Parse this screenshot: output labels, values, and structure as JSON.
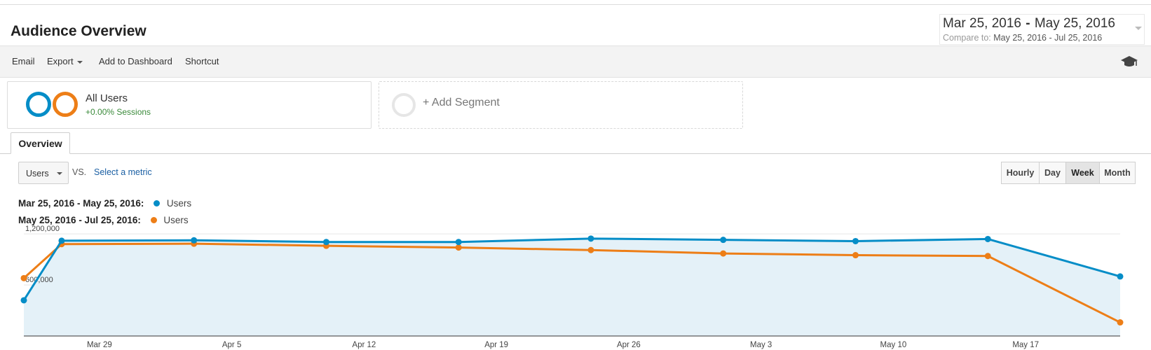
{
  "header": {
    "title": "Audience Overview",
    "date_range": {
      "start": "Mar 25, 2016",
      "separator": "-",
      "end": "May 25, 2016"
    },
    "compare_label": "Compare to:",
    "compare_range": "May 25, 2016 - Jul 25, 2016"
  },
  "toolbar": {
    "email": "Email",
    "export": "Export",
    "add_to_dashboard": "Add to Dashboard",
    "shortcut": "Shortcut"
  },
  "segments": {
    "all_users": {
      "name": "All Users",
      "sessions_delta": "+0.00% Sessions"
    },
    "add_segment": "+ Add Segment"
  },
  "tabs": {
    "overview": "Overview"
  },
  "controls": {
    "metric": "Users",
    "vs": "VS.",
    "select_metric": "Select a metric",
    "granularity": [
      "Hourly",
      "Day",
      "Week",
      "Month"
    ],
    "active_granularity": "Week"
  },
  "legend": [
    {
      "range": "Mar 25, 2016 - May 25, 2016:",
      "metric": "Users",
      "color": "#058dc7"
    },
    {
      "range": "May 25, 2016 - Jul 25, 2016:",
      "metric": "Users",
      "color": "#ed7e17"
    }
  ],
  "chart_data": {
    "type": "line",
    "ylim": [
      0,
      1300000
    ],
    "yticks": [
      {
        "value": 1200000,
        "label": "1,200,000"
      },
      {
        "value": 600000,
        "label": "600,000"
      }
    ],
    "xticks": [
      "Mar 29",
      "Apr 5",
      "Apr 12",
      "Apr 19",
      "Apr 26",
      "May 3",
      "May 10",
      "May 17"
    ],
    "x": [
      "Mar 25",
      "Mar 27",
      "Apr 3",
      "Apr 10",
      "Apr 17",
      "Apr 24",
      "May 1",
      "May 8",
      "May 15",
      "May 22"
    ],
    "series": [
      {
        "name": "Users",
        "color": "#058dc7",
        "fill": true,
        "values": [
          420000,
          1120000,
          1125000,
          1105000,
          1105000,
          1145000,
          1130000,
          1115000,
          1140000,
          700000
        ]
      },
      {
        "name": "Users",
        "color": "#ed7e17",
        "fill": false,
        "values": [
          680000,
          1080000,
          1085000,
          1060000,
          1040000,
          1010000,
          970000,
          950000,
          940000,
          160000
        ]
      }
    ]
  }
}
